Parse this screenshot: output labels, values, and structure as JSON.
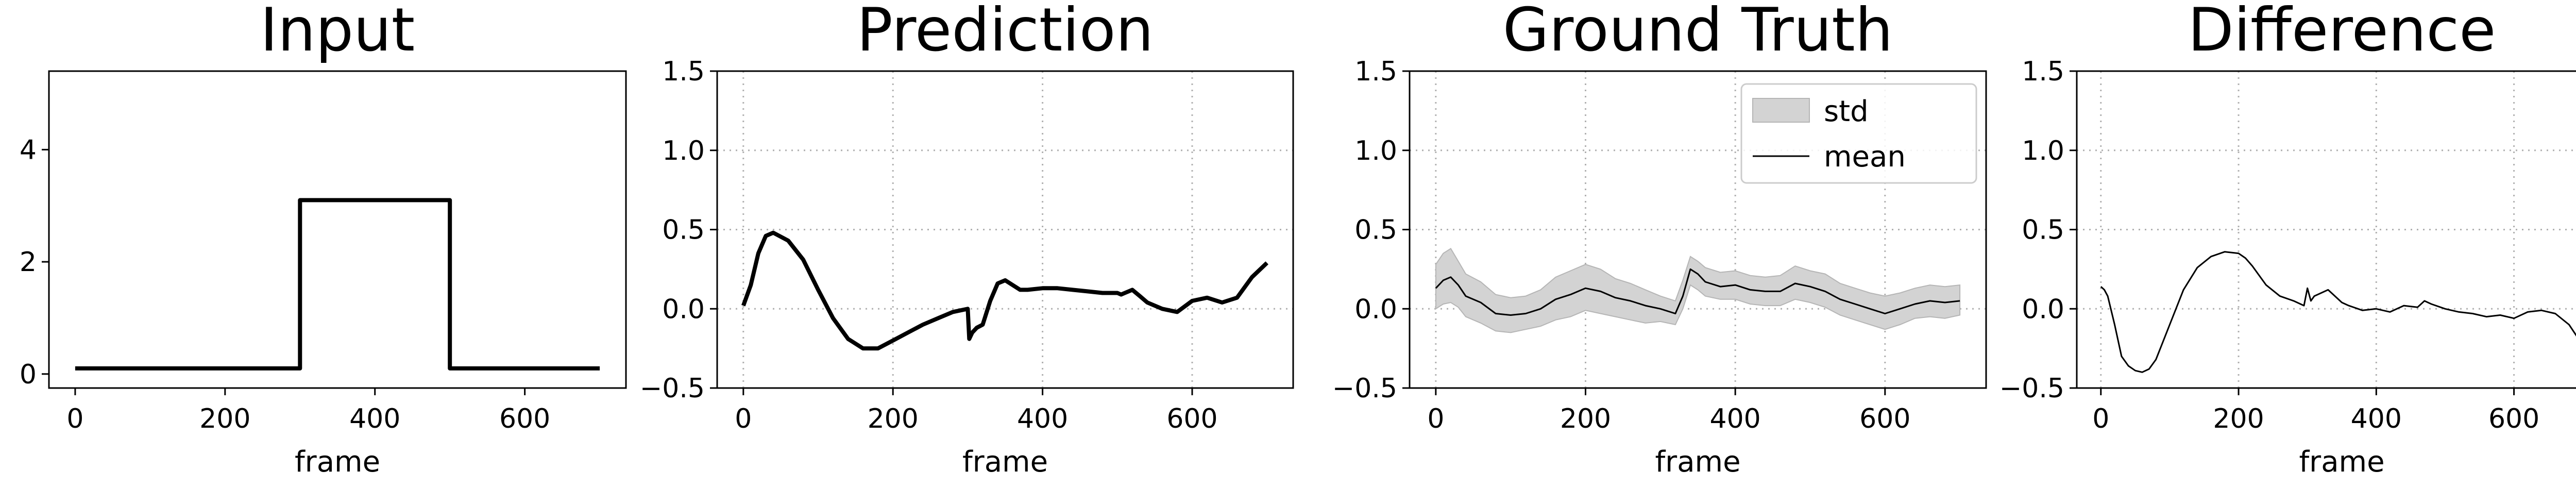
{
  "figure": {
    "type": "line-panels",
    "panel_count": 4
  },
  "chart_data": [
    {
      "type": "line",
      "title": "Input",
      "xlabel": "frame",
      "ylabel": "",
      "xlim": [
        -35,
        735
      ],
      "ylim": [
        -0.25,
        5.4
      ],
      "xticks": [
        0,
        200,
        400,
        600
      ],
      "xtick_labels": [
        "0",
        "200",
        "400",
        "600"
      ],
      "yticks": [
        0,
        2,
        4
      ],
      "ytick_labels": [
        "0",
        "2",
        "4"
      ],
      "grid": false,
      "series": [
        {
          "name": "input",
          "color": "#000000",
          "x": [
            0,
            300,
            300,
            500,
            500,
            700
          ],
          "y": [
            0.1,
            0.1,
            3.1,
            3.1,
            0.1,
            0.1
          ]
        }
      ]
    },
    {
      "type": "line",
      "title": "Prediction",
      "xlabel": "frame",
      "ylabel": "",
      "xlim": [
        -35,
        735
      ],
      "ylim": [
        -0.5,
        1.5
      ],
      "xticks": [
        0,
        200,
        400,
        600
      ],
      "xtick_labels": [
        "0",
        "200",
        "400",
        "600"
      ],
      "yticks": [
        -0.5,
        0.0,
        0.5,
        1.0,
        1.5
      ],
      "ytick_labels": [
        "−0.5",
        "0.0",
        "0.5",
        "1.0",
        "1.5"
      ],
      "grid": true,
      "series": [
        {
          "name": "prediction",
          "color": "#000000",
          "x": [
            0,
            10,
            20,
            30,
            40,
            60,
            80,
            100,
            120,
            140,
            160,
            180,
            200,
            220,
            240,
            260,
            280,
            300,
            302,
            306,
            312,
            320,
            330,
            340,
            350,
            360,
            370,
            380,
            400,
            420,
            440,
            460,
            480,
            500,
            505,
            510,
            520,
            530,
            540,
            560,
            580,
            600,
            620,
            640,
            660,
            680,
            700
          ],
          "y": [
            0.02,
            0.15,
            0.35,
            0.46,
            0.48,
            0.43,
            0.31,
            0.12,
            -0.06,
            -0.19,
            -0.25,
            -0.25,
            -0.2,
            -0.15,
            -0.1,
            -0.06,
            -0.02,
            0.0,
            -0.19,
            -0.15,
            -0.12,
            -0.1,
            0.05,
            0.16,
            0.18,
            0.15,
            0.12,
            0.12,
            0.13,
            0.13,
            0.12,
            0.11,
            0.1,
            0.1,
            0.09,
            0.1,
            0.12,
            0.08,
            0.04,
            0.0,
            -0.02,
            0.05,
            0.07,
            0.04,
            0.07,
            0.2,
            0.29
          ]
        }
      ]
    },
    {
      "type": "line",
      "title": "Ground Truth",
      "xlabel": "frame",
      "ylabel": "",
      "xlim": [
        -35,
        735
      ],
      "ylim": [
        -0.5,
        1.5
      ],
      "xticks": [
        0,
        200,
        400,
        600
      ],
      "xtick_labels": [
        "0",
        "200",
        "400",
        "600"
      ],
      "yticks": [
        -0.5,
        0.0,
        0.5,
        1.0,
        1.5
      ],
      "ytick_labels": [
        "−0.5",
        "0.0",
        "0.5",
        "1.0",
        "1.5"
      ],
      "grid": true,
      "legend": {
        "position": "upper right",
        "entries": [
          "std",
          "mean"
        ]
      },
      "series": [
        {
          "name": "mean",
          "color": "#000000",
          "x": [
            0,
            10,
            20,
            30,
            40,
            60,
            80,
            100,
            120,
            140,
            160,
            180,
            200,
            220,
            240,
            260,
            280,
            300,
            320,
            330,
            340,
            350,
            360,
            380,
            400,
            420,
            440,
            460,
            480,
            500,
            520,
            540,
            560,
            580,
            600,
            620,
            640,
            660,
            680,
            700
          ],
          "y": [
            0.13,
            0.18,
            0.2,
            0.15,
            0.08,
            0.04,
            -0.03,
            -0.04,
            -0.03,
            0.0,
            0.06,
            0.09,
            0.13,
            0.11,
            0.07,
            0.05,
            0.02,
            0.0,
            -0.03,
            0.08,
            0.25,
            0.22,
            0.17,
            0.14,
            0.15,
            0.12,
            0.11,
            0.11,
            0.16,
            0.14,
            0.11,
            0.06,
            0.03,
            0.0,
            -0.03,
            0.0,
            0.03,
            0.05,
            0.04,
            0.05
          ]
        },
        {
          "name": "std_upper",
          "x": [
            0,
            10,
            20,
            30,
            40,
            60,
            80,
            100,
            120,
            140,
            160,
            180,
            200,
            220,
            240,
            260,
            280,
            300,
            320,
            330,
            340,
            350,
            360,
            380,
            400,
            420,
            440,
            460,
            480,
            500,
            520,
            540,
            560,
            580,
            600,
            620,
            640,
            660,
            680,
            700
          ],
          "y": [
            0.28,
            0.35,
            0.38,
            0.3,
            0.22,
            0.17,
            0.09,
            0.07,
            0.08,
            0.12,
            0.2,
            0.24,
            0.28,
            0.25,
            0.19,
            0.16,
            0.12,
            0.08,
            0.05,
            0.18,
            0.33,
            0.3,
            0.26,
            0.23,
            0.24,
            0.21,
            0.2,
            0.21,
            0.27,
            0.24,
            0.22,
            0.16,
            0.13,
            0.1,
            0.08,
            0.1,
            0.13,
            0.15,
            0.14,
            0.15
          ]
        },
        {
          "name": "std_lower",
          "x": [
            0,
            10,
            20,
            30,
            40,
            60,
            80,
            100,
            120,
            140,
            160,
            180,
            200,
            220,
            240,
            260,
            280,
            300,
            320,
            330,
            340,
            350,
            360,
            380,
            400,
            420,
            440,
            460,
            480,
            500,
            520,
            540,
            560,
            580,
            600,
            620,
            640,
            660,
            680,
            700
          ],
          "y": [
            0.0,
            0.03,
            0.04,
            0.01,
            -0.05,
            -0.09,
            -0.14,
            -0.15,
            -0.13,
            -0.11,
            -0.07,
            -0.05,
            -0.01,
            -0.03,
            -0.05,
            -0.07,
            -0.09,
            -0.08,
            -0.1,
            0.0,
            0.15,
            0.12,
            0.08,
            0.06,
            0.06,
            0.03,
            0.02,
            0.02,
            0.06,
            0.04,
            0.01,
            -0.04,
            -0.07,
            -0.1,
            -0.13,
            -0.1,
            -0.06,
            -0.05,
            -0.06,
            -0.04
          ]
        }
      ]
    },
    {
      "type": "line",
      "title": "Difference",
      "xlabel": "frame",
      "ylabel": "",
      "xlim": [
        -35,
        735
      ],
      "ylim": [
        -0.5,
        1.5
      ],
      "xticks": [
        0,
        200,
        400,
        600
      ],
      "xtick_labels": [
        "0",
        "200",
        "400",
        "600"
      ],
      "yticks": [
        -0.5,
        0.0,
        0.5,
        1.0,
        1.5
      ],
      "ytick_labels": [
        "−0.5",
        "0.0",
        "0.5",
        "1.0",
        "1.5"
      ],
      "grid": true,
      "series": [
        {
          "name": "difference",
          "color": "#000000",
          "x": [
            0,
            5,
            10,
            20,
            30,
            40,
            50,
            60,
            70,
            80,
            100,
            120,
            140,
            160,
            180,
            200,
            210,
            220,
            240,
            260,
            280,
            295,
            300,
            305,
            310,
            320,
            330,
            340,
            350,
            360,
            380,
            400,
            420,
            440,
            460,
            470,
            480,
            500,
            520,
            540,
            560,
            580,
            600,
            620,
            640,
            660,
            680,
            700
          ],
          "y": [
            0.14,
            0.12,
            0.08,
            -0.1,
            -0.3,
            -0.36,
            -0.39,
            -0.4,
            -0.38,
            -0.32,
            -0.1,
            0.12,
            0.26,
            0.33,
            0.36,
            0.35,
            0.32,
            0.27,
            0.15,
            0.08,
            0.05,
            0.02,
            0.13,
            0.05,
            0.08,
            0.1,
            0.12,
            0.08,
            0.04,
            0.02,
            -0.01,
            0.0,
            -0.02,
            0.02,
            0.01,
            0.05,
            0.03,
            0.0,
            -0.02,
            -0.03,
            -0.05,
            -0.04,
            -0.06,
            -0.02,
            -0.01,
            -0.03,
            -0.1,
            -0.23
          ]
        }
      ]
    }
  ]
}
